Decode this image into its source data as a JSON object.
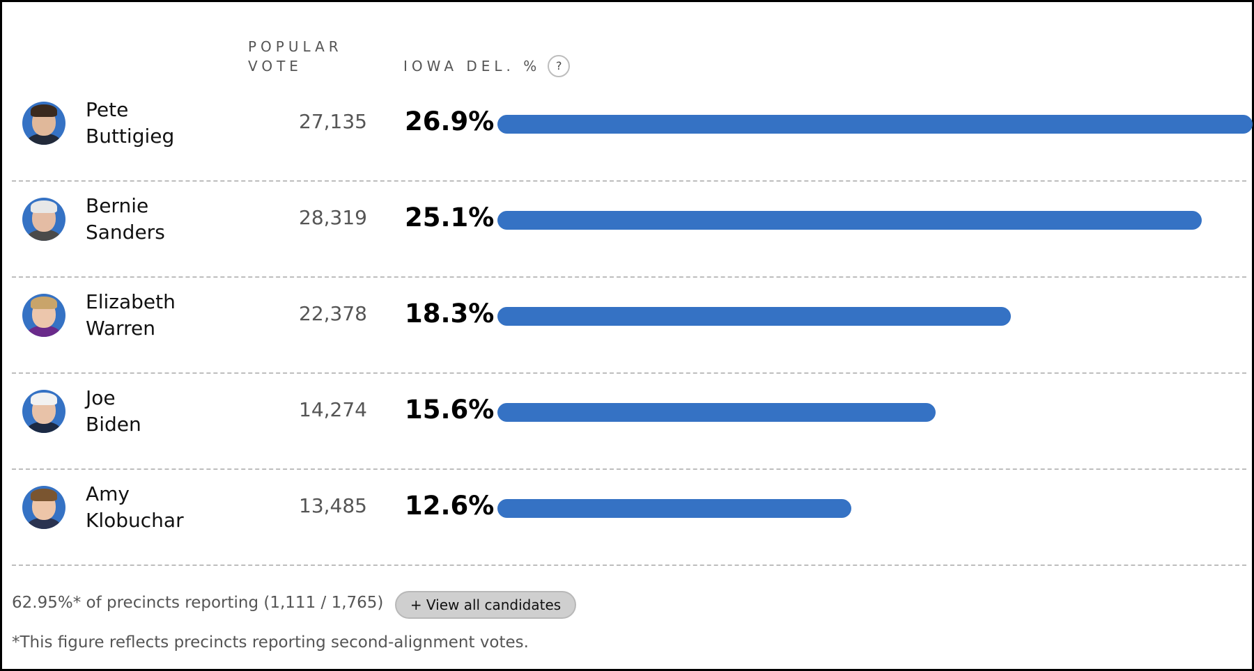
{
  "header": {
    "popular_vote": "POPULAR\nVOTE",
    "delegate_pct": "IOWA DEL. %",
    "help": "?"
  },
  "candidates": [
    {
      "name": "Pete\nButtigieg",
      "votes": "27,135",
      "pct_label": "26.9%",
      "pct": 26.9,
      "avatar": "portrait-buttigieg",
      "hair": "#3a2a1e",
      "skin": "#e0b89a",
      "clothes": "#222a3a"
    },
    {
      "name": "Bernie\nSanders",
      "votes": "28,319",
      "pct_label": "25.1%",
      "pct": 25.1,
      "avatar": "portrait-sanders",
      "hair": "#e8e8e8",
      "skin": "#e4bca4",
      "clothes": "#4a4a4a"
    },
    {
      "name": "Elizabeth\nWarren",
      "votes": "22,378",
      "pct_label": "18.3%",
      "pct": 18.3,
      "avatar": "portrait-warren",
      "hair": "#c9a46a",
      "skin": "#ecc6ac",
      "clothes": "#6a2a8a"
    },
    {
      "name": "Joe\nBiden",
      "votes": "14,274",
      "pct_label": "15.6%",
      "pct": 15.6,
      "avatar": "portrait-biden",
      "hair": "#f2f2f2",
      "skin": "#e8c2a8",
      "clothes": "#1c2a44"
    },
    {
      "name": "Amy\nKlobuchar",
      "votes": "13,485",
      "pct_label": "12.6%",
      "pct": 12.6,
      "avatar": "portrait-klobuchar",
      "hair": "#7a5530",
      "skin": "#edc5a8",
      "clothes": "#2a3350"
    }
  ],
  "footer": {
    "reporting": "62.95%* of precincts reporting (1,111 / 1,765)",
    "view_all": "+ View all candidates",
    "footnote": "*This figure reflects precincts reporting second-alignment votes."
  },
  "colors": {
    "bar": "#3572c4"
  }
}
